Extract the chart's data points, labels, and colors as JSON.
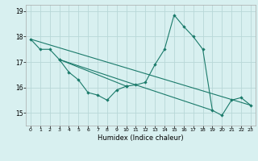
{
  "title": "",
  "xlabel": "Humidex (Indice chaleur)",
  "bg_color": "#d8f0f0",
  "grid_color": "#b8d8d8",
  "line_color": "#1a7a6a",
  "xlim": [
    -0.5,
    23.5
  ],
  "ylim": [
    14.5,
    19.25
  ],
  "xticks": [
    0,
    1,
    2,
    3,
    4,
    5,
    6,
    7,
    8,
    9,
    10,
    11,
    12,
    13,
    14,
    15,
    16,
    17,
    18,
    19,
    20,
    21,
    22,
    23
  ],
  "yticks": [
    15,
    16,
    17,
    18,
    19
  ],
  "line1_x": [
    0,
    1,
    2,
    3,
    4,
    5,
    6,
    7,
    8,
    9,
    10
  ],
  "line1_y": [
    17.9,
    17.5,
    17.5,
    17.1,
    16.6,
    16.3,
    15.8,
    15.7,
    15.5,
    15.9,
    16.05
  ],
  "line2_x": [
    3,
    10,
    11,
    12,
    13,
    14,
    15,
    16,
    17,
    18,
    19,
    20,
    21,
    22,
    23
  ],
  "line2_y": [
    17.1,
    16.05,
    16.1,
    16.2,
    16.9,
    17.5,
    18.85,
    18.4,
    18.0,
    17.5,
    15.1,
    14.9,
    15.5,
    15.6,
    15.3
  ],
  "line3_x": [
    0,
    23
  ],
  "line3_y": [
    17.9,
    15.3
  ],
  "line4_x": [
    3,
    19
  ],
  "line4_y": [
    17.1,
    15.1
  ]
}
